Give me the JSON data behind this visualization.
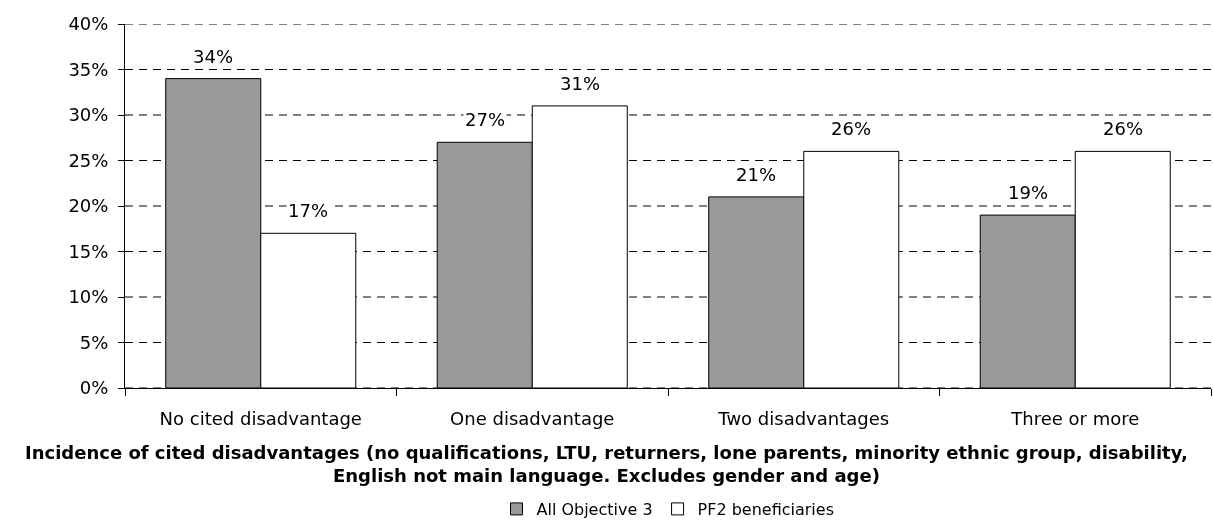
{
  "chart_data": {
    "type": "bar",
    "categories": [
      "No cited disadvantage",
      "One disadvantage",
      "Two disadvantages",
      "Three or more"
    ],
    "series": [
      {
        "name": "All Objective 3",
        "color": "#999999",
        "values": [
          34,
          27,
          21,
          19
        ],
        "value_labels": [
          "34%",
          "27%",
          "21%",
          "19%"
        ]
      },
      {
        "name": "PF2 beneficiaries",
        "color": "#ffffff",
        "values": [
          17,
          31,
          26,
          26
        ],
        "value_labels": [
          "17%",
          "31%",
          "26%",
          "26%"
        ]
      }
    ],
    "xlabel": "Incidence of cited disadvantages (no qualifications, LTU, returners, lone parents, minority ethnic group, disability, English not main language. Excludes gender and age)",
    "ylim": [
      0,
      40
    ],
    "yticks": [
      {
        "value": 0,
        "label": "0%"
      },
      {
        "value": 5,
        "label": "5%"
      },
      {
        "value": 10,
        "label": "10%"
      },
      {
        "value": 15,
        "label": "15%"
      },
      {
        "value": 20,
        "label": "20%"
      },
      {
        "value": 25,
        "label": "25%"
      },
      {
        "value": 30,
        "label": "30%"
      },
      {
        "value": 35,
        "label": "35%"
      },
      {
        "value": 40,
        "label": "40%"
      }
    ],
    "grid": "y",
    "legend": "bottom"
  }
}
